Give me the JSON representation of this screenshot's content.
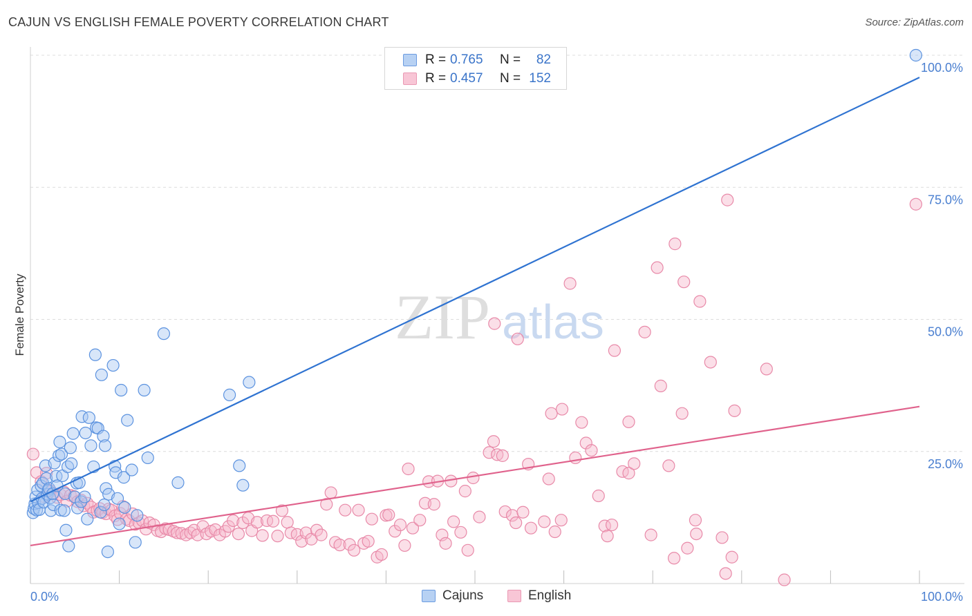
{
  "title": "CAJUN VS ENGLISH FEMALE POVERTY CORRELATION CHART",
  "source": "Source: ZipAtlas.com",
  "watermark": {
    "zip": "ZIP",
    "atlas": "atlas"
  },
  "legend_top": [
    {
      "r_label": "R =",
      "r_value": "0.765",
      "n_label": "N =",
      "n_value": "82"
    },
    {
      "r_label": "R =",
      "r_value": "0.457",
      "n_label": "N =",
      "n_value": "152"
    }
  ],
  "legend_bottom": [
    "Cajuns",
    "English"
  ],
  "colors": {
    "cajun_fill": "#a9c8f2",
    "cajun_stroke": "#5b92df",
    "cajun_line": "#2f73d1",
    "english_fill": "#f6b8cc",
    "english_stroke": "#e889a8",
    "english_line": "#e0628c",
    "tick": "#4a7fd0"
  },
  "chart_data": {
    "type": "scatter",
    "xlabel": "",
    "ylabel": "Female Poverty",
    "xlim": [
      0,
      100
    ],
    "ylim": [
      0,
      100
    ],
    "x_tick_labels": [
      "0.0%",
      "100.0%"
    ],
    "y_tick_labels": [
      "25.0%",
      "50.0%",
      "75.0%",
      "100.0%"
    ],
    "y_ticks": [
      25,
      50,
      75,
      100
    ],
    "grid": true,
    "series": [
      {
        "name": "Cajuns",
        "trend": {
          "x": [
            0,
            100
          ],
          "y": [
            15.5,
            95.8
          ]
        },
        "points": [
          [
            0.3,
            13.4
          ],
          [
            0.4,
            14.2
          ],
          [
            0.5,
            15.1
          ],
          [
            0.6,
            16.4
          ],
          [
            0.7,
            13.9
          ],
          [
            0.8,
            17.7
          ],
          [
            0.9,
            15.3
          ],
          [
            1.0,
            14.0
          ],
          [
            1.2,
            18.5
          ],
          [
            1.3,
            16.1
          ],
          [
            1.4,
            19.0
          ],
          [
            1.5,
            15.4
          ],
          [
            1.7,
            22.3
          ],
          [
            1.8,
            19.9
          ],
          [
            1.9,
            16.9
          ],
          [
            2.0,
            17.6
          ],
          [
            2.1,
            18.0
          ],
          [
            2.2,
            16.2
          ],
          [
            2.3,
            13.8
          ],
          [
            2.5,
            17.0
          ],
          [
            2.6,
            14.9
          ],
          [
            2.7,
            22.8
          ],
          [
            2.9,
            20.3
          ],
          [
            3.0,
            18.5
          ],
          [
            3.2,
            24.2
          ],
          [
            3.3,
            26.8
          ],
          [
            3.4,
            13.9
          ],
          [
            3.5,
            24.5
          ],
          [
            3.6,
            20.4
          ],
          [
            3.8,
            13.8
          ],
          [
            3.9,
            17.0
          ],
          [
            4.0,
            10.1
          ],
          [
            4.2,
            22.1
          ],
          [
            4.3,
            7.1
          ],
          [
            4.5,
            25.7
          ],
          [
            4.6,
            22.7
          ],
          [
            4.8,
            28.4
          ],
          [
            5.0,
            16.4
          ],
          [
            5.2,
            19.0
          ],
          [
            5.3,
            14.3
          ],
          [
            5.5,
            19.1
          ],
          [
            5.7,
            15.5
          ],
          [
            5.8,
            31.6
          ],
          [
            6.1,
            16.4
          ],
          [
            6.2,
            28.5
          ],
          [
            6.4,
            12.2
          ],
          [
            6.6,
            31.4
          ],
          [
            6.8,
            26.1
          ],
          [
            7.1,
            22.1
          ],
          [
            7.3,
            43.3
          ],
          [
            7.4,
            29.5
          ],
          [
            7.6,
            29.4
          ],
          [
            7.9,
            13.5
          ],
          [
            8.0,
            39.5
          ],
          [
            8.2,
            27.9
          ],
          [
            8.3,
            14.9
          ],
          [
            8.4,
            26.1
          ],
          [
            8.5,
            18.0
          ],
          [
            8.7,
            6.0
          ],
          [
            8.8,
            16.9
          ],
          [
            9.3,
            41.3
          ],
          [
            9.5,
            22.2
          ],
          [
            9.6,
            21.0
          ],
          [
            9.8,
            16.1
          ],
          [
            10.0,
            11.3
          ],
          [
            10.2,
            36.6
          ],
          [
            10.5,
            20.1
          ],
          [
            10.6,
            14.4
          ],
          [
            10.9,
            30.9
          ],
          [
            11.4,
            21.5
          ],
          [
            11.8,
            7.8
          ],
          [
            12.0,
            12.9
          ],
          [
            12.8,
            36.6
          ],
          [
            13.2,
            23.8
          ],
          [
            15.0,
            47.3
          ],
          [
            16.6,
            19.1
          ],
          [
            22.4,
            35.7
          ],
          [
            23.5,
            22.3
          ],
          [
            24.6,
            38.1
          ],
          [
            23.9,
            18.6
          ],
          [
            99.6,
            100.0
          ]
        ]
      },
      {
        "name": "English",
        "trend": {
          "x": [
            0,
            100
          ],
          "y": [
            7.2,
            33.5
          ]
        },
        "points": [
          [
            0.3,
            24.5
          ],
          [
            0.7,
            21.0
          ],
          [
            1.2,
            19.3
          ],
          [
            1.6,
            16.4
          ],
          [
            1.8,
            20.9
          ],
          [
            2.0,
            17.7
          ],
          [
            2.3,
            17.5
          ],
          [
            2.6,
            17.0
          ],
          [
            3.0,
            16.3
          ],
          [
            3.4,
            16.8
          ],
          [
            3.8,
            17.3
          ],
          [
            4.1,
            15.6
          ],
          [
            4.5,
            16.7
          ],
          [
            4.9,
            16.5
          ],
          [
            5.3,
            15.5
          ],
          [
            5.7,
            15.8
          ],
          [
            6.0,
            14.7
          ],
          [
            6.4,
            15.2
          ],
          [
            6.8,
            14.5
          ],
          [
            7.1,
            13.5
          ],
          [
            7.5,
            13.8
          ],
          [
            7.8,
            14.2
          ],
          [
            8.1,
            13.4
          ],
          [
            8.5,
            13.2
          ],
          [
            8.8,
            14.1
          ],
          [
            9.1,
            13.9
          ],
          [
            9.5,
            12.8
          ],
          [
            9.8,
            12.1
          ],
          [
            10.1,
            13.3
          ],
          [
            10.4,
            14.6
          ],
          [
            10.8,
            12.2
          ],
          [
            11.1,
            11.9
          ],
          [
            11.5,
            13.2
          ],
          [
            11.8,
            11.2
          ],
          [
            12.2,
            11.5
          ],
          [
            12.6,
            11.9
          ],
          [
            13.0,
            10.3
          ],
          [
            13.4,
            11.5
          ],
          [
            13.9,
            11.1
          ],
          [
            14.3,
            10.0
          ],
          [
            14.7,
            9.8
          ],
          [
            15.2,
            10.4
          ],
          [
            15.6,
            10.2
          ],
          [
            16.1,
            9.9
          ],
          [
            16.5,
            9.6
          ],
          [
            17.0,
            9.5
          ],
          [
            17.5,
            9.2
          ],
          [
            18.0,
            9.6
          ],
          [
            18.4,
            10.1
          ],
          [
            18.8,
            9.2
          ],
          [
            19.4,
            10.8
          ],
          [
            19.8,
            9.4
          ],
          [
            20.3,
            9.9
          ],
          [
            20.8,
            10.2
          ],
          [
            21.3,
            9.2
          ],
          [
            21.9,
            9.9
          ],
          [
            22.3,
            10.8
          ],
          [
            22.8,
            11.9
          ],
          [
            23.4,
            9.4
          ],
          [
            23.9,
            11.5
          ],
          [
            24.5,
            12.4
          ],
          [
            24.9,
            10.0
          ],
          [
            25.5,
            11.6
          ],
          [
            26.1,
            9.1
          ],
          [
            26.6,
            11.9
          ],
          [
            27.3,
            11.8
          ],
          [
            27.8,
            9.0
          ],
          [
            28.3,
            13.8
          ],
          [
            28.9,
            11.6
          ],
          [
            29.3,
            9.6
          ],
          [
            30.0,
            9.3
          ],
          [
            30.5,
            8.0
          ],
          [
            31.0,
            9.6
          ],
          [
            31.6,
            8.4
          ],
          [
            32.2,
            10.1
          ],
          [
            32.7,
            9.2
          ],
          [
            33.3,
            15.0
          ],
          [
            33.8,
            17.2
          ],
          [
            34.3,
            7.8
          ],
          [
            34.8,
            7.3
          ],
          [
            35.4,
            13.9
          ],
          [
            35.9,
            7.4
          ],
          [
            36.4,
            6.3
          ],
          [
            36.9,
            13.9
          ],
          [
            37.5,
            7.6
          ],
          [
            38.0,
            8.0
          ],
          [
            38.4,
            12.2
          ],
          [
            39.0,
            5.0
          ],
          [
            39.5,
            5.5
          ],
          [
            40.0,
            12.9
          ],
          [
            40.3,
            13.0
          ],
          [
            41.0,
            9.9
          ],
          [
            41.6,
            11.1
          ],
          [
            42.1,
            7.2
          ],
          [
            42.5,
            21.7
          ],
          [
            43.0,
            10.5
          ],
          [
            43.8,
            12.0
          ],
          [
            44.4,
            15.2
          ],
          [
            44.8,
            19.3
          ],
          [
            45.4,
            15.0
          ],
          [
            45.8,
            19.4
          ],
          [
            46.3,
            9.2
          ],
          [
            46.7,
            7.6
          ],
          [
            47.3,
            19.4
          ],
          [
            47.6,
            11.7
          ],
          [
            48.4,
            9.7
          ],
          [
            48.9,
            17.5
          ],
          [
            49.2,
            6.3
          ],
          [
            49.8,
            20.0
          ],
          [
            50.5,
            12.6
          ],
          [
            51.6,
            24.8
          ],
          [
            52.1,
            26.9
          ],
          [
            52.5,
            24.4
          ],
          [
            53.1,
            24.2
          ],
          [
            53.4,
            13.6
          ],
          [
            54.2,
            12.9
          ],
          [
            54.6,
            11.5
          ],
          [
            55.4,
            13.5
          ],
          [
            56.0,
            22.6
          ],
          [
            56.3,
            10.5
          ],
          [
            57.8,
            11.7
          ],
          [
            58.3,
            19.8
          ],
          [
            59.0,
            9.8
          ],
          [
            59.7,
            12.0
          ],
          [
            61.3,
            23.8
          ],
          [
            62.0,
            30.5
          ],
          [
            62.5,
            26.6
          ],
          [
            63.1,
            25.2
          ],
          [
            63.9,
            16.6
          ],
          [
            64.6,
            10.9
          ],
          [
            64.9,
            9.0
          ],
          [
            65.4,
            11.1
          ],
          [
            66.6,
            21.2
          ],
          [
            67.3,
            20.9
          ],
          [
            67.9,
            22.7
          ],
          [
            52.2,
            49.2
          ],
          [
            54.8,
            46.3
          ],
          [
            58.6,
            32.2
          ],
          [
            59.8,
            33.0
          ],
          [
            60.7,
            56.8
          ],
          [
            65.7,
            44.1
          ],
          [
            67.3,
            30.6
          ],
          [
            69.1,
            47.6
          ],
          [
            69.8,
            9.2
          ],
          [
            70.5,
            59.8
          ],
          [
            70.9,
            37.4
          ],
          [
            71.8,
            22.3
          ],
          [
            72.4,
            4.8
          ],
          [
            72.5,
            64.3
          ],
          [
            73.3,
            32.2
          ],
          [
            73.5,
            57.1
          ],
          [
            73.9,
            6.7
          ],
          [
            74.8,
            12.0
          ],
          [
            75.3,
            53.4
          ],
          [
            74.9,
            9.4
          ],
          [
            76.5,
            41.9
          ],
          [
            77.8,
            8.7
          ],
          [
            78.2,
            1.9
          ],
          [
            78.4,
            72.6
          ],
          [
            78.9,
            5.0
          ],
          [
            79.2,
            32.7
          ],
          [
            82.8,
            40.6
          ],
          [
            84.8,
            0.7
          ],
          [
            99.6,
            71.8
          ]
        ]
      }
    ]
  }
}
